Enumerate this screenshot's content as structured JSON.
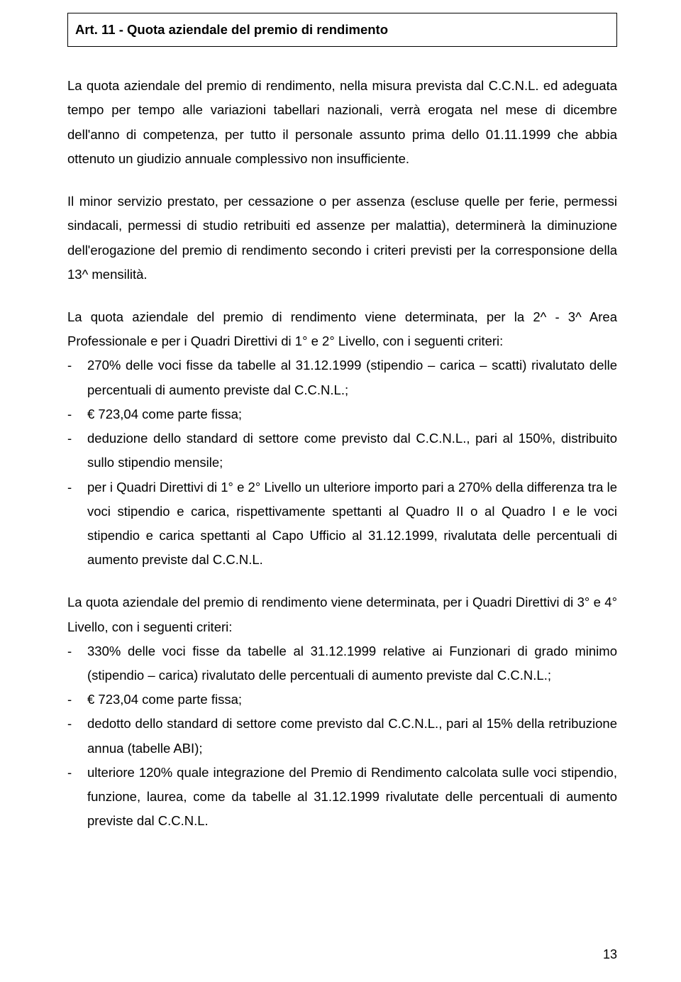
{
  "title": "Art. 11 - Quota aziendale del premio di rendimento",
  "p1": "La quota aziendale del premio di rendimento, nella misura prevista dal C.C.N.L. ed adeguata tempo per tempo alle variazioni tabellari nazionali, verrà erogata nel mese di dicembre dell'anno di competenza, per tutto il personale assunto prima dello 01.11.1999 che abbia ottenuto un giudizio annuale complessivo non insufficiente.",
  "p2": "Il minor servizio prestato, per cessazione o per assenza (escluse quelle per ferie, permessi sindacali, permessi di studio retribuiti ed assenze per malattia), determinerà la diminuzione dell'erogazione del premio di rendimento secondo i criteri previsti per la corresponsione della 13^ mensilità.",
  "p3_intro": "La quota aziendale del premio di rendimento viene determinata, per la 2^ - 3^ Area Professionale e per i Quadri Direttivi di 1° e 2° Livello, con i seguenti criteri:",
  "p3_b1": "270% delle voci fisse da tabelle al 31.12.1999 (stipendio – carica – scatti) rivalutato delle percentuali di aumento previste dal C.C.N.L.;",
  "p3_b2": "€ 723,04 come parte fissa;",
  "p3_b3": "deduzione dello standard di settore come previsto dal C.C.N.L., pari al 150%, distribuito sullo stipendio mensile;",
  "p3_b4": "per i Quadri Direttivi di 1° e 2° Livello un ulteriore importo pari a 270% della differenza tra le voci stipendio e carica, rispettivamente spettanti al Quadro II o al Quadro I e le voci stipendio e carica spettanti al Capo Ufficio al 31.12.1999, rivalutata delle percentuali di aumento previste dal C.C.N.L.",
  "p4_intro": "La quota aziendale del premio di rendimento viene determinata, per i Quadri Direttivi di 3° e 4° Livello, con i seguenti criteri:",
  "p4_b1": "330% delle voci fisse da tabelle al 31.12.1999 relative ai Funzionari di grado minimo (stipendio – carica) rivalutato delle percentuali di aumento previste dal C.C.N.L.;",
  "p4_b2": "€ 723,04 come parte fissa;",
  "p4_b3": "dedotto dello standard di settore come previsto dal C.C.N.L., pari al 15% della retribuzione annua (tabelle ABI);",
  "p4_b4": "ulteriore 120% quale integrazione del Premio di Rendimento calcolata sulle voci stipendio, funzione, laurea, come da tabelle al 31.12.1999 rivalutate delle percentuali di aumento previste dal C.C.N.L.",
  "page_number": "13"
}
